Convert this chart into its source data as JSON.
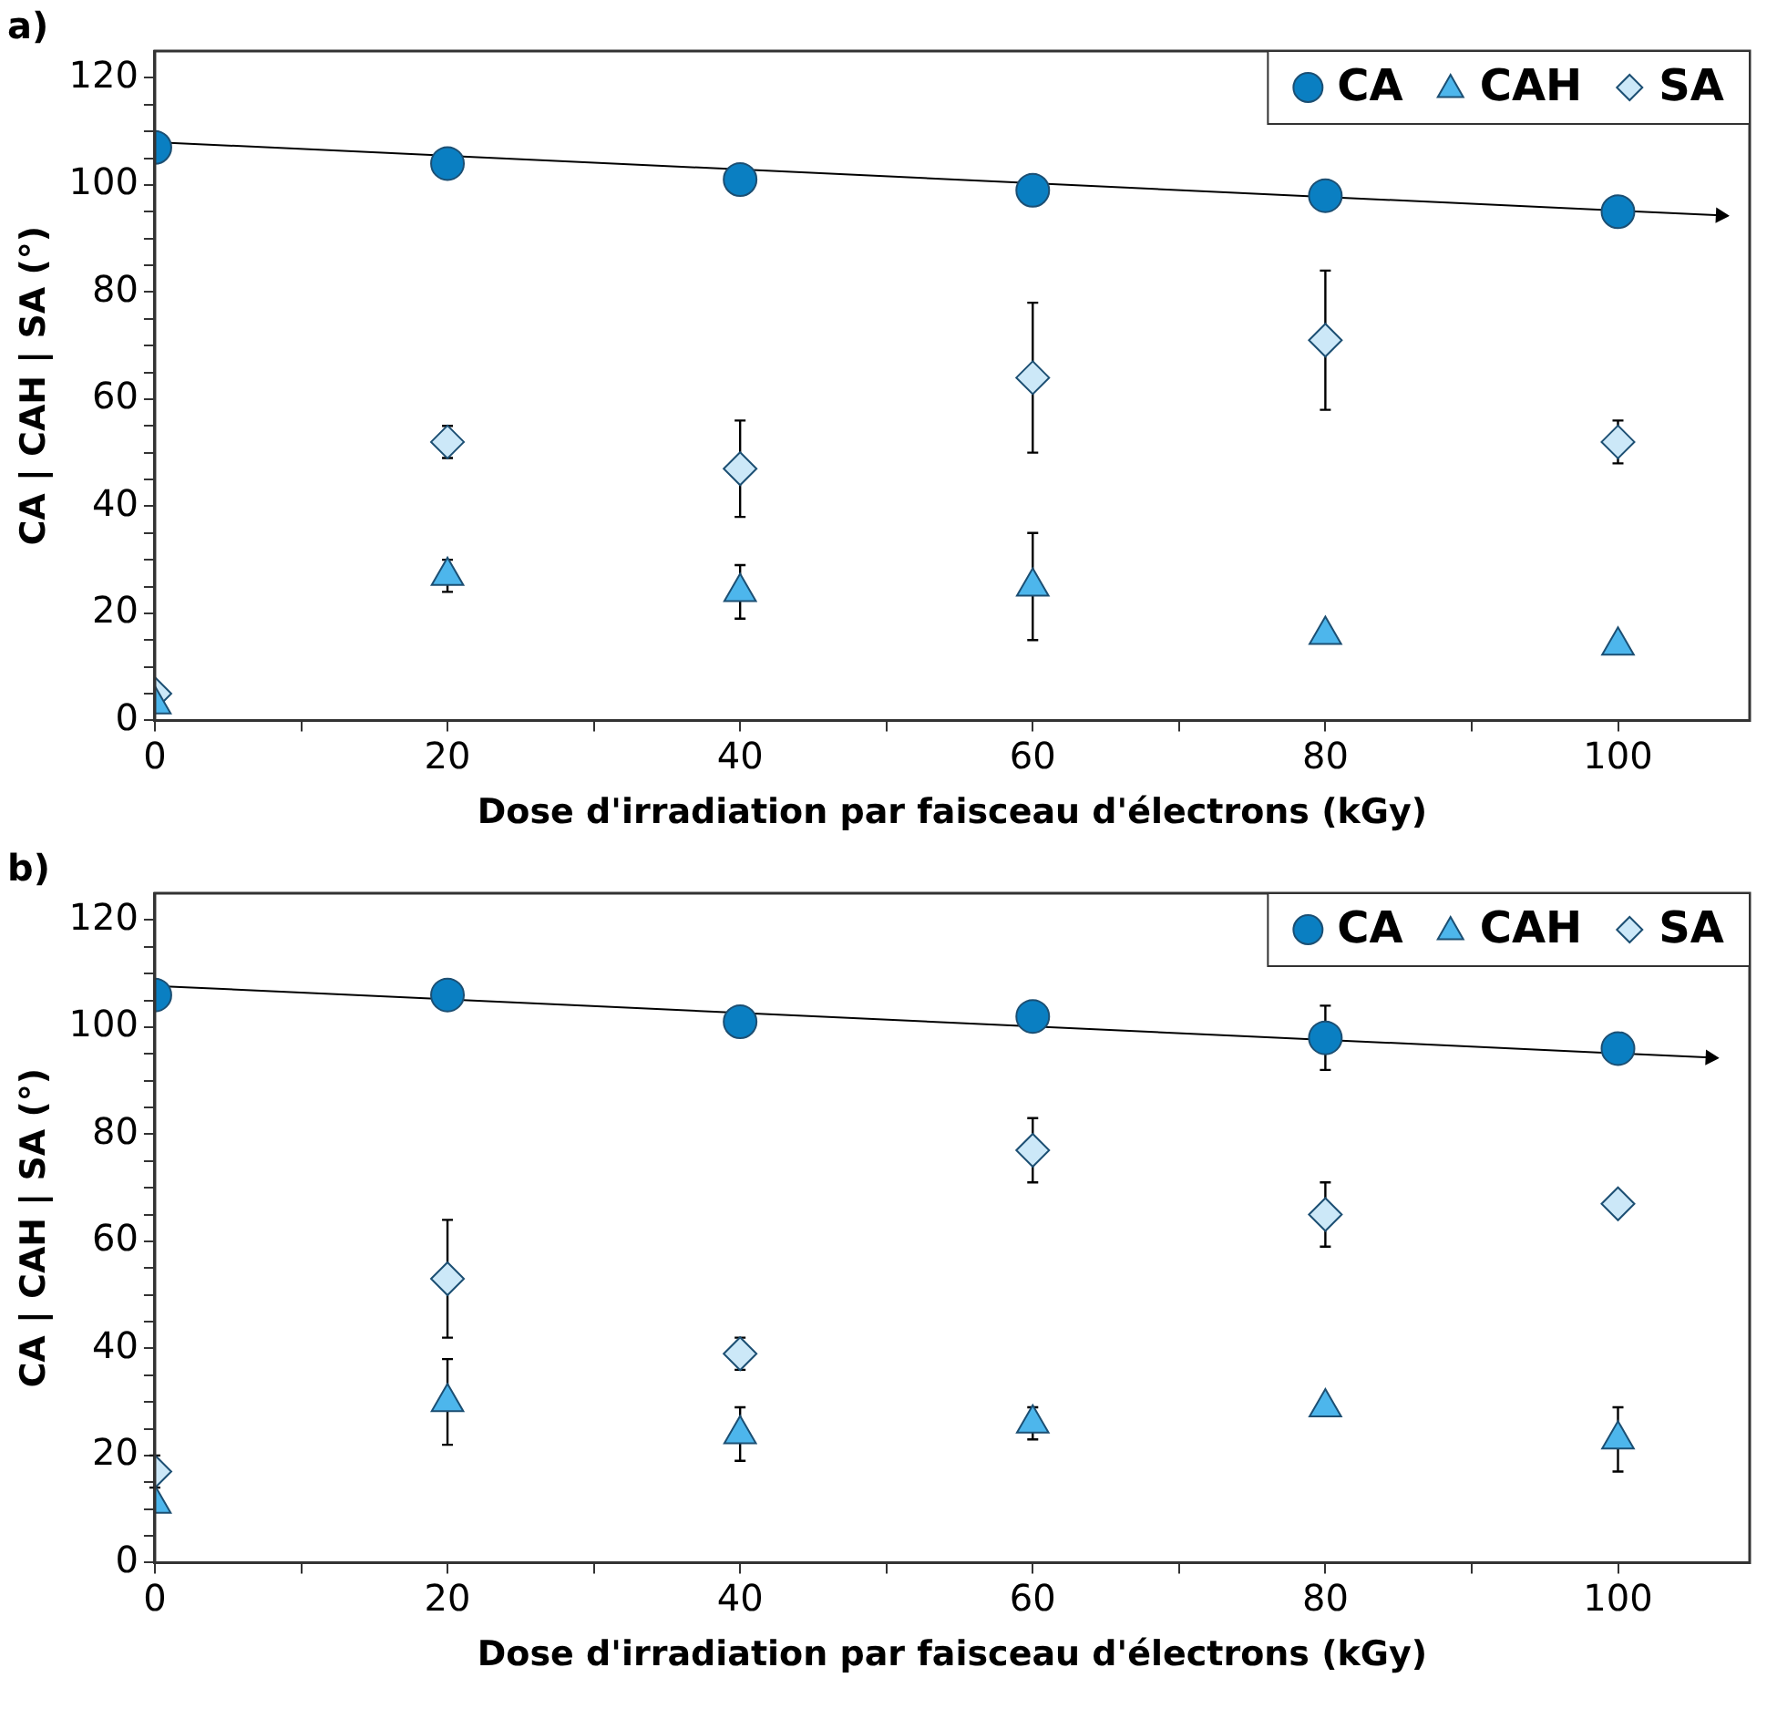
{
  "chart_data": [
    {
      "type": "scatter",
      "title": "a)",
      "xlabel": "Dose d'irradiation par faisceau d'électrons (kGy)",
      "ylabel": "CA | CAH | SA (°)",
      "x": [
        0,
        20,
        40,
        60,
        80,
        100
      ],
      "series": [
        {
          "name": "CA",
          "color": "#0a7fc2",
          "marker": "circle",
          "values": [
            107,
            104,
            101,
            99,
            98,
            95
          ]
        },
        {
          "name": "CAH",
          "color": "#4db6ec",
          "marker": "triangle",
          "values": [
            3,
            27,
            24,
            25,
            16,
            14
          ],
          "errors": [
            null,
            3,
            5,
            10,
            null,
            null
          ]
        },
        {
          "name": "SA",
          "color": "#cce8f8",
          "marker": "diamond",
          "values": [
            5,
            52,
            47,
            64,
            71,
            52
          ],
          "errors": [
            null,
            3,
            9,
            14,
            13,
            4
          ]
        },
        {
          "type": "line",
          "color": "#000000",
          "x": [
            0,
            107
          ],
          "values": [
            108,
            94.3
          ]
        }
      ],
      "xlim": [
        0,
        109
      ],
      "xticks": [
        0,
        {
          "value": 10,
          "label": null
        },
        20,
        {
          "value": 30,
          "label": null
        },
        40,
        {
          "value": 50,
          "label": null
        },
        60,
        {
          "value": 70,
          "label": null
        },
        80,
        {
          "value": 90,
          "label": null
        },
        100
      ],
      "ylim": [
        0,
        125
      ],
      "yticks": [
        0,
        {
          "value": 5,
          "label": null
        },
        {
          "value": 10,
          "label": null
        },
        {
          "value": 15,
          "label": null
        },
        20,
        {
          "value": 25,
          "label": null
        },
        {
          "value": 30,
          "label": null
        },
        {
          "value": 35,
          "label": null
        },
        40,
        {
          "value": 45,
          "label": null
        },
        {
          "value": 50,
          "label": null
        },
        {
          "value": 55,
          "label": null
        },
        60,
        {
          "value": 65,
          "label": null
        },
        {
          "value": 70,
          "label": null
        },
        {
          "value": 75,
          "label": null
        },
        80,
        {
          "value": 85,
          "label": null
        },
        {
          "value": 90,
          "label": null
        },
        {
          "value": 95,
          "label": null
        },
        100,
        {
          "value": 105,
          "label": null
        },
        {
          "value": 110,
          "label": null
        },
        {
          "value": 115,
          "label": null
        },
        120
      ],
      "legend": "top right"
    },
    {
      "type": "scatter",
      "title": "b)",
      "xlabel": "Dose d'irradiation par faisceau d'électrons (kGy)",
      "ylabel": "CA | CAH | SA (°)",
      "x": [
        0,
        20,
        40,
        60,
        80,
        100
      ],
      "series": [
        {
          "name": "CA",
          "color": "#0a7fc2",
          "marker": "circle",
          "values": [
            106,
            106,
            101,
            102,
            98,
            96
          ],
          "errors": [
            null,
            null,
            null,
            null,
            6,
            null
          ]
        },
        {
          "name": "CAH",
          "color": "#4db6ec",
          "marker": "triangle",
          "values": [
            11,
            30,
            24,
            26,
            29,
            23
          ],
          "errors": [
            null,
            8,
            5,
            3,
            null,
            6
          ]
        },
        {
          "name": "SA",
          "color": "#cce8f8",
          "marker": "diamond",
          "values": [
            17,
            53,
            39,
            77,
            65,
            67
          ],
          "errors": [
            3,
            11,
            3,
            6,
            6,
            null
          ]
        },
        {
          "type": "line",
          "color": "#000000",
          "x": [
            0,
            106.3
          ],
          "values": [
            107.7,
            94.3
          ]
        }
      ],
      "xlim": [
        0,
        109
      ],
      "xticks": [
        0,
        {
          "value": 10,
          "label": null
        },
        20,
        {
          "value": 30,
          "label": null
        },
        40,
        {
          "value": 50,
          "label": null
        },
        60,
        {
          "value": 70,
          "label": null
        },
        80,
        {
          "value": 90,
          "label": null
        },
        100
      ],
      "ylim": [
        0,
        125
      ],
      "yticks": [
        0,
        {
          "value": 5,
          "label": null
        },
        {
          "value": 10,
          "label": null
        },
        {
          "value": 15,
          "label": null
        },
        20,
        {
          "value": 25,
          "label": null
        },
        {
          "value": 30,
          "label": null
        },
        {
          "value": 35,
          "label": null
        },
        40,
        {
          "value": 45,
          "label": null
        },
        {
          "value": 50,
          "label": null
        },
        {
          "value": 55,
          "label": null
        },
        60,
        {
          "value": 65,
          "label": null
        },
        {
          "value": 70,
          "label": null
        },
        {
          "value": 75,
          "label": null
        },
        80,
        {
          "value": 85,
          "label": null
        },
        {
          "value": 90,
          "label": null
        },
        {
          "value": 95,
          "label": null
        },
        100,
        {
          "value": 105,
          "label": null
        },
        {
          "value": 110,
          "label": null
        },
        {
          "value": 115,
          "label": null
        },
        120
      ],
      "legend": "top right"
    }
  ]
}
